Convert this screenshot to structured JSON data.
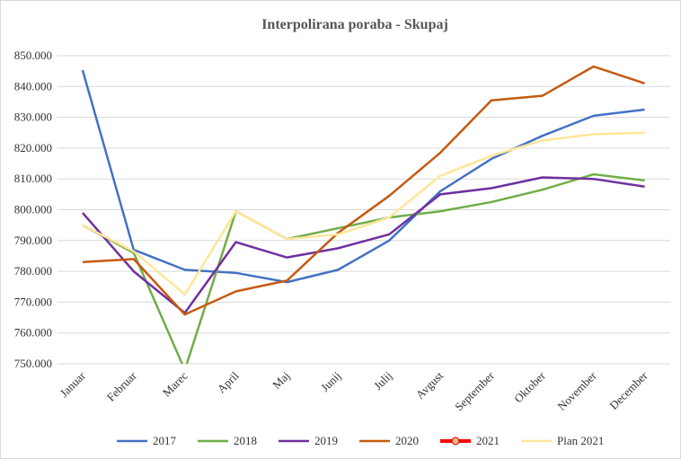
{
  "chart_data": {
    "type": "line",
    "title": "Interpolirana poraba - Skupaj",
    "categories": [
      "Januar",
      "Februar",
      "Marec",
      "April",
      "Maj",
      "Junij",
      "Julij",
      "Avgust",
      "September",
      "Oktober",
      "November",
      "December"
    ],
    "ylim": [
      750000,
      850000
    ],
    "yticks": [
      {
        "value": 750000,
        "label": "750.000"
      },
      {
        "value": 760000,
        "label": "760.000"
      },
      {
        "value": 770000,
        "label": "770.000"
      },
      {
        "value": 780000,
        "label": "780.000"
      },
      {
        "value": 790000,
        "label": "790.000"
      },
      {
        "value": 800000,
        "label": "800.000"
      },
      {
        "value": 810000,
        "label": "810.000"
      },
      {
        "value": 820000,
        "label": "820.000"
      },
      {
        "value": 830000,
        "label": "830.000"
      },
      {
        "value": 840000,
        "label": "840.000"
      },
      {
        "value": 850000,
        "label": "850.000"
      }
    ],
    "grid": true,
    "legend": "bottom",
    "series": [
      {
        "name": "2017",
        "color": "#4472c4",
        "values": [
          845300,
          787000,
          780500,
          779500,
          776500,
          780500,
          790000,
          806000,
          816500,
          824000,
          830500,
          832500
        ]
      },
      {
        "name": "2018",
        "color": "#70ad47",
        "values": [
          795000,
          786000,
          748000,
          799500,
          790500,
          794000,
          797500,
          799500,
          802500,
          806500,
          811500,
          809500
        ]
      },
      {
        "name": "2019",
        "color": "#7030a0",
        "values": [
          799000,
          780000,
          766500,
          789500,
          784500,
          787500,
          792000,
          805000,
          807000,
          810500,
          810000,
          807500
        ]
      },
      {
        "name": "2020",
        "color": "#c55a11",
        "values": [
          783000,
          784000,
          766000,
          773500,
          777000,
          792500,
          804500,
          818500,
          835500,
          837000,
          846500,
          841000
        ]
      },
      {
        "name": "2021",
        "color": "#ff0000",
        "values": [
          null,
          null,
          null,
          null,
          null,
          null,
          null,
          null,
          null,
          null,
          null,
          null
        ]
      },
      {
        "name": "Plan 2021",
        "color": "#ffe699",
        "values": [
          795000,
          786500,
          772500,
          799500,
          790500,
          792000,
          797500,
          811000,
          817500,
          822500,
          824500,
          825000
        ]
      }
    ]
  }
}
